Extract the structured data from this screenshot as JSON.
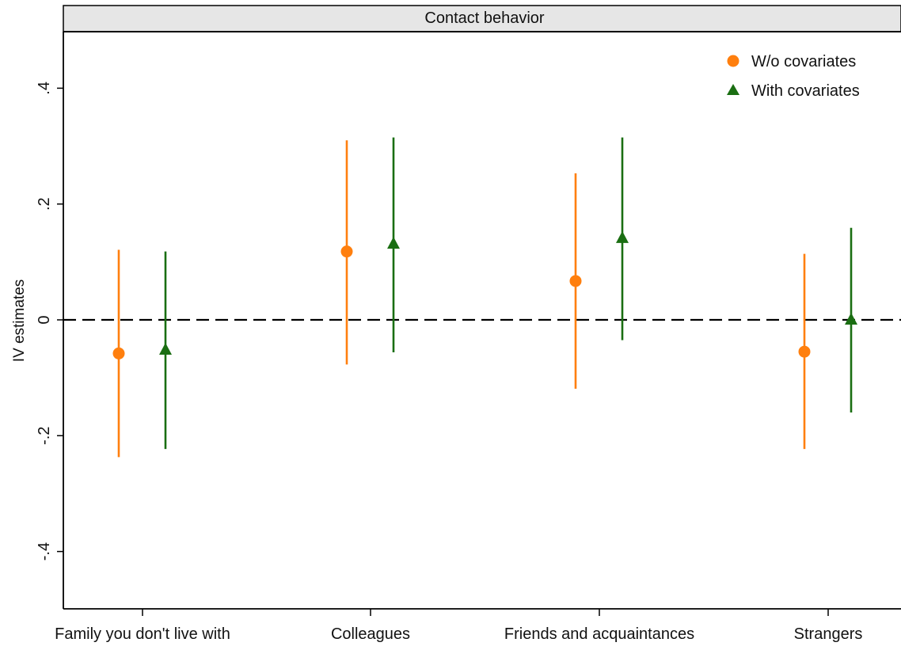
{
  "chart_data": {
    "type": "scatter",
    "panel_title": "Contact behavior",
    "ylabel": "IV estimates",
    "xlabel": "",
    "ylim": [
      -0.5,
      0.5
    ],
    "yticks": [
      -0.4,
      -0.2,
      0,
      0.2,
      0.4
    ],
    "ytick_labels": [
      "-.4",
      "-.2",
      "0",
      ".2",
      ".4"
    ],
    "categories": [
      "Family you don't live with",
      "Colleagues",
      "Friends and acquaintances",
      "Strangers"
    ],
    "reference_line": 0,
    "legend_position": "top-right",
    "grid": false,
    "series": [
      {
        "name": "W/o covariates",
        "marker": "circle",
        "color": "#ff7f0e",
        "estimates": [
          -0.058,
          0.118,
          0.067,
          -0.055
        ],
        "ci_low": [
          -0.237,
          -0.077,
          -0.119,
          -0.223
        ],
        "ci_high": [
          0.121,
          0.31,
          0.253,
          0.114
        ]
      },
      {
        "name": "With covariates",
        "marker": "triangle",
        "color": "#1a6e12",
        "estimates": [
          -0.052,
          0.131,
          0.141,
          0.0
        ],
        "ci_low": [
          -0.223,
          -0.056,
          -0.035,
          -0.16
        ],
        "ci_high": [
          0.118,
          0.315,
          0.315,
          0.159
        ]
      }
    ]
  }
}
